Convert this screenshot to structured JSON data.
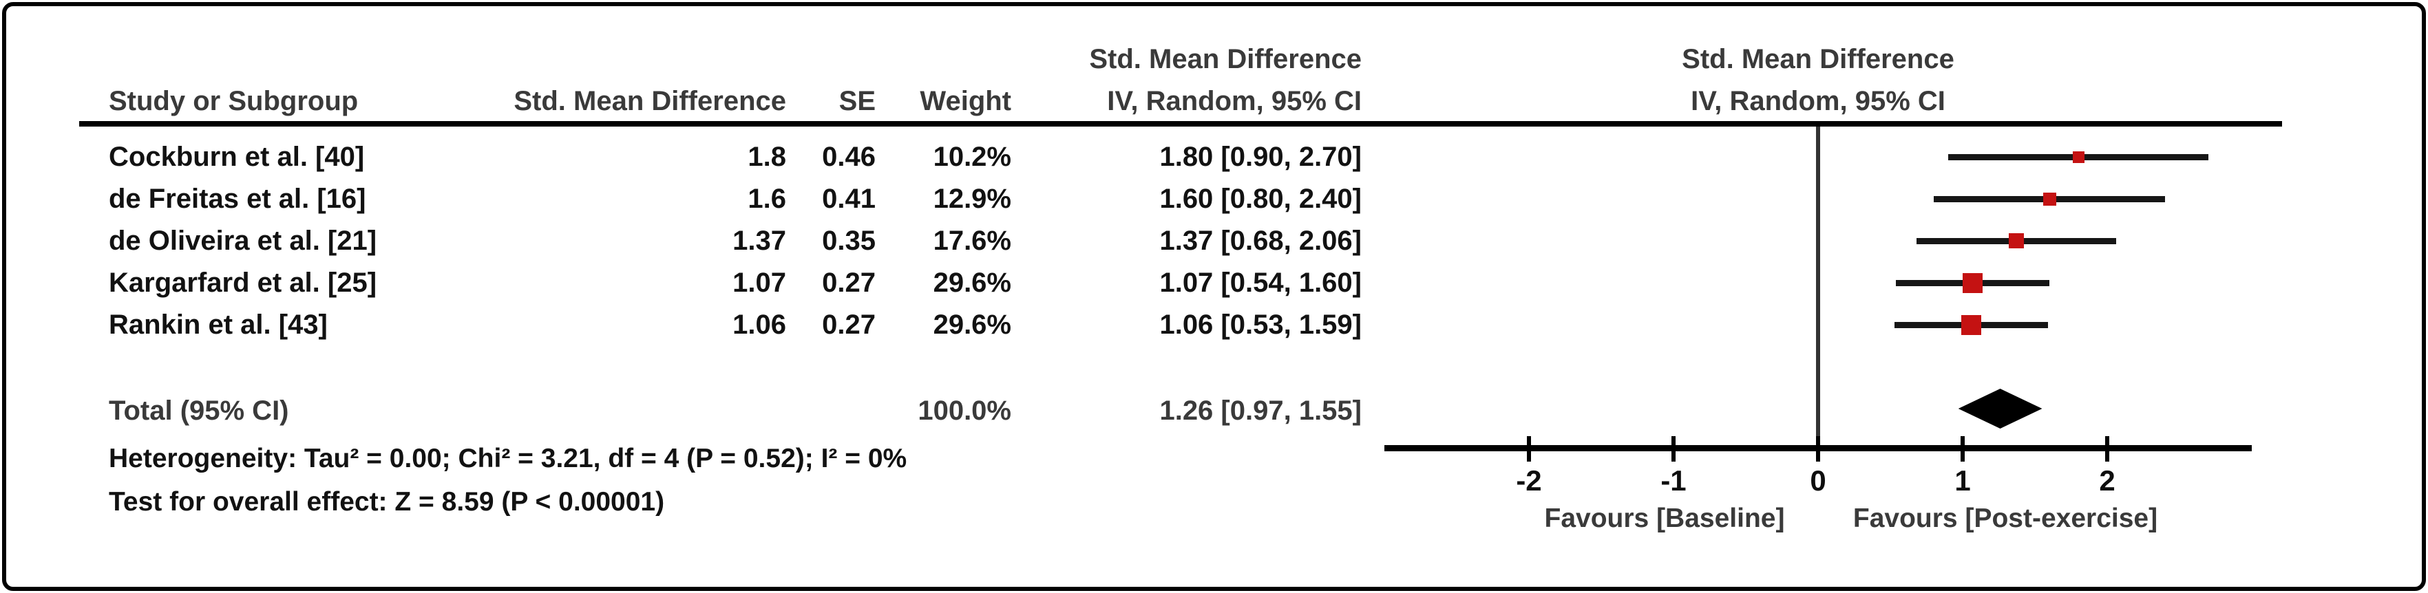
{
  "colors": {
    "marker_red": "#c41212",
    "line_black": "#161616",
    "header_gray": "#3a3a3a",
    "text_black": "#121212"
  },
  "table": {
    "header": {
      "col_study": "Study or Subgroup",
      "col_smd": "Std. Mean Difference",
      "col_se": "SE",
      "col_weight": "Weight",
      "col_ci_line1": "Std. Mean Difference",
      "col_ci_line2": "IV, Random, 95% CI",
      "plot_line1": "Std. Mean Difference",
      "plot_line2": "IV, Random, 95% CI"
    },
    "total": {
      "label": "Total (95% CI)",
      "weight": "100.0%",
      "ci_text": "1.26 [0.97, 1.55]"
    },
    "heterogeneity": "Heterogeneity: Tau² = 0.00; Chi² = 3.21, df = 4 (P = 0.52); I² = 0%",
    "overall_effect": "Test for overall effect: Z = 8.59 (P < 0.00001)"
  },
  "chart_data": {
    "type": "forest",
    "effect_measure": "Std. Mean Difference, IV, Random, 95% CI",
    "x_axis": {
      "range": [
        -3,
        3
      ],
      "tick_values": [
        -2,
        -1,
        0,
        1,
        2
      ],
      "tick_labels": [
        "-2",
        "-1",
        "0",
        "1",
        "2"
      ]
    },
    "favours_left": "Favours [Baseline]",
    "favours_right": "Favours [Post-exercise]",
    "studies": [
      {
        "name": "Cockburn et al. [40]",
        "smd": "1.8",
        "se": "0.46",
        "weight": "10.2%",
        "ci_text": "1.80 [0.90, 2.70]",
        "est": 1.8,
        "lo": 0.9,
        "hi": 2.7,
        "weight_pct": 10.2
      },
      {
        "name": "de Freitas et al. [16]",
        "smd": "1.6",
        "se": "0.41",
        "weight": "12.9%",
        "ci_text": "1.60 [0.80, 2.40]",
        "est": 1.6,
        "lo": 0.8,
        "hi": 2.4,
        "weight_pct": 12.9
      },
      {
        "name": "de Oliveira et al. [21]",
        "smd": "1.37",
        "se": "0.35",
        "weight": "17.6%",
        "ci_text": "1.37 [0.68, 2.06]",
        "est": 1.37,
        "lo": 0.68,
        "hi": 2.06,
        "weight_pct": 17.6
      },
      {
        "name": "Kargarfard et al. [25]",
        "smd": "1.07",
        "se": "0.27",
        "weight": "29.6%",
        "ci_text": "1.07 [0.54, 1.60]",
        "est": 1.07,
        "lo": 0.54,
        "hi": 1.6,
        "weight_pct": 29.6
      },
      {
        "name": "Rankin et al. [43]",
        "smd": "1.06",
        "se": "0.27",
        "weight": "29.6%",
        "ci_text": "1.06 [0.53, 1.59]",
        "est": 1.06,
        "lo": 0.53,
        "hi": 1.59,
        "weight_pct": 29.6
      }
    ],
    "total_effect": {
      "est": 1.26,
      "lo": 0.97,
      "hi": 1.55
    }
  }
}
